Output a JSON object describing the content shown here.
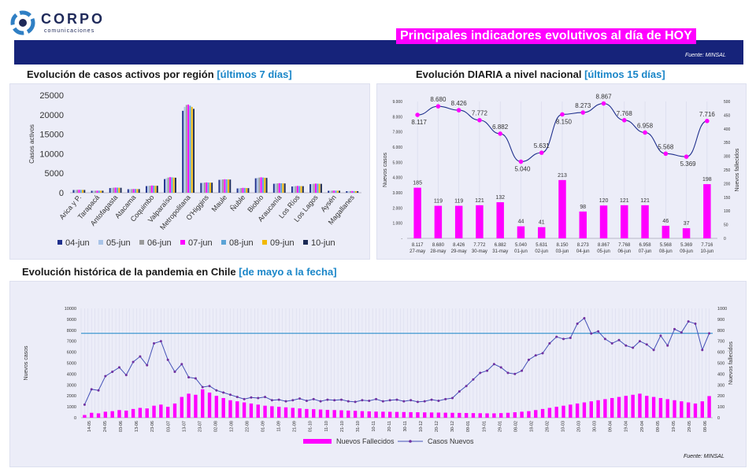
{
  "logo": {
    "name": "CORPO",
    "sub": "comunicaciones"
  },
  "header": {
    "title": "Principales indicadores evolutivos al día de HOY",
    "source": "Fuente: MINSAL"
  },
  "sections": {
    "regional": {
      "title": "Evolución de casos activos por región",
      "accent": "[últimos 7 días]"
    },
    "daily": {
      "title": "Evolución DIARIA  a nivel nacional",
      "accent": "[últimos 15 días]"
    },
    "history": {
      "title": "Evolución histórica de la pandemia en Chile",
      "accent": "[de mayo a la fecha]"
    }
  },
  "footer": {
    "source": "Fuente: MINSAL"
  },
  "colors": {
    "navy": "#16237a",
    "magenta": "#ff00ff",
    "purple": "#7030a0",
    "accent": "#1a86c8",
    "line": "#4451b8"
  },
  "chart_data": [
    {
      "type": "bar",
      "ylabel": "Casos activos",
      "ylim": [
        0,
        25000
      ],
      "yticks": [
        "0",
        "5000",
        "10000",
        "15000",
        "20000",
        "25000"
      ],
      "categories": [
        "Arica y P.",
        "Tarapacá",
        "Antofagasta",
        "Atacama",
        "Coquimbo",
        "Valparaíso",
        "Metropolitana",
        "O'Higgins",
        "Maule",
        "Ñuble",
        "Biobío",
        "Araucanía",
        "Los Ríos",
        "Los Lagos",
        "Aysén",
        "Magallanes"
      ],
      "series": [
        {
          "name": "04-jun",
          "color": "#1f2f8c",
          "values": [
            700,
            500,
            1200,
            900,
            1700,
            3500,
            21000,
            2500,
            3300,
            1100,
            3700,
            2300,
            1600,
            2200,
            500,
            400
          ]
        },
        {
          "name": "05-jun",
          "color": "#a9c4e8",
          "values": [
            720,
            510,
            1250,
            920,
            1750,
            3700,
            22000,
            2550,
            3350,
            1150,
            3800,
            2350,
            1650,
            2250,
            520,
            420
          ]
        },
        {
          "name": "06-jun",
          "color": "#9a9a9a",
          "values": [
            740,
            520,
            1300,
            940,
            1800,
            3900,
            22500,
            2600,
            3400,
            1200,
            3900,
            2400,
            1700,
            2300,
            540,
            430
          ]
        },
        {
          "name": "07-jun",
          "color": "#ff00ff",
          "values": [
            760,
            530,
            1320,
            950,
            1850,
            4000,
            22600,
            2650,
            3450,
            1250,
            3950,
            2450,
            1750,
            2350,
            550,
            440
          ]
        },
        {
          "name": "08-jun",
          "color": "#5ba3d6",
          "values": [
            750,
            540,
            1310,
            960,
            1830,
            3950,
            22300,
            2620,
            3420,
            1230,
            3900,
            2420,
            1720,
            2320,
            540,
            430
          ]
        },
        {
          "name": "09-jun",
          "color": "#f2b800",
          "values": [
            730,
            530,
            1290,
            940,
            1800,
            3900,
            22000,
            2600,
            3400,
            1200,
            3850,
            2400,
            1700,
            2300,
            530,
            420
          ]
        },
        {
          "name": "10-jun",
          "color": "#1b2a55",
          "values": [
            720,
            520,
            1270,
            930,
            1780,
            3850,
            21500,
            2580,
            3380,
            1180,
            3800,
            2380,
            1680,
            2280,
            520,
            410
          ]
        }
      ]
    },
    {
      "type": "bar+line",
      "ylabel_left": "Nuevos casos",
      "ylabel_right": "Nuevos fallecidos",
      "yticks_left": [
        "-",
        "1.000",
        "2.000",
        "3.000",
        "4.000",
        "5.000",
        "6.000",
        "7.000",
        "8.000",
        "9.000"
      ],
      "yticks_right": [
        "0",
        "50",
        "100",
        "150",
        "200",
        "250",
        "300",
        "350",
        "400",
        "450",
        "500"
      ],
      "categories": [
        "27-may",
        "28-may",
        "29-may",
        "30-may",
        "31-may",
        "01-jun",
        "02-jun",
        "03-jun",
        "04-jun",
        "05-jun",
        "06-jun",
        "07-jun",
        "08-jun",
        "09-jun",
        "10-jun"
      ],
      "cases": [
        8117,
        8680,
        8426,
        7772,
        6882,
        5040,
        5631,
        8150,
        8273,
        8867,
        7768,
        6958,
        5568,
        5369,
        7716
      ],
      "case_labels": [
        "8.117",
        "8.680",
        "8.426",
        "7.772",
        "6.882",
        "5.040",
        "5.631",
        "8.150",
        "8.273",
        "8.867",
        "7.768",
        "6.958",
        "5.568",
        "5.369",
        "7.716"
      ],
      "deaths": [
        185,
        119,
        119,
        121,
        132,
        44,
        41,
        213,
        98,
        120,
        121,
        121,
        46,
        37,
        198
      ],
      "death_labels": [
        "185",
        "119",
        "119",
        "121",
        "132",
        "44",
        "41",
        "213",
        "98",
        "120",
        "121",
        "121",
        "46",
        "37",
        "198"
      ]
    },
    {
      "type": "bar+line",
      "ylabel_left": "Nuevos casos",
      "ylabel_right": "Nuevos fallecidos",
      "yticks_left": [
        "0",
        "1000",
        "2000",
        "3000",
        "4000",
        "5000",
        "6000",
        "7000",
        "8000",
        "9000",
        "10000"
      ],
      "yticks_right": [
        "0",
        "100",
        "200",
        "300",
        "400",
        "500",
        "600",
        "700",
        "800",
        "900",
        "1000"
      ],
      "reference_value": 7716,
      "legend": [
        "Nuevos Fallecidos",
        "Casos Nuevos"
      ],
      "x_tick_labels": [
        "14-05",
        "24-05",
        "03-06",
        "13-06",
        "23-06",
        "03-07",
        "13-07",
        "23-07",
        "02-08",
        "12-08",
        "22-08",
        "01-09",
        "11-09",
        "21-09",
        "01-10",
        "11-10",
        "21-10",
        "31-10",
        "10-11",
        "20-11",
        "30-11",
        "10-12",
        "20-12",
        "30-12",
        "09-01",
        "19-01",
        "29-01",
        "08-02",
        "18-02",
        "28-02",
        "10-03",
        "20-03",
        "30-03",
        "09-04",
        "19-04",
        "29-04",
        "09-05",
        "19-05",
        "29-05",
        "08-06"
      ],
      "cases": [
        1200,
        2600,
        2500,
        3800,
        4200,
        4600,
        3900,
        5100,
        5600,
        4800,
        6800,
        7000,
        5300,
        4200,
        4900,
        3700,
        3600,
        2800,
        2900,
        2500,
        2300,
        2100,
        1900,
        1700,
        1850,
        1800,
        1900,
        1600,
        1650,
        1500,
        1600,
        1750,
        1550,
        1700,
        1500,
        1650,
        1600,
        1650,
        1500,
        1450,
        1600,
        1550,
        1700,
        1500,
        1600,
        1650,
        1500,
        1600,
        1450,
        1500,
        1650,
        1550,
        1700,
        1800,
        2400,
        2900,
        3500,
        4100,
        4300,
        4900,
        4600,
        4100,
        4000,
        4300,
        5300,
        5700,
        5900,
        6800,
        7400,
        7200,
        7300,
        8600,
        9100,
        7700,
        7900,
        7200,
        6800,
        7100,
        6600,
        6400,
        7000,
        6700,
        6200,
        7500,
        6600,
        8100,
        7800,
        8800,
        8600,
        6200,
        7716
      ],
      "deaths": [
        25,
        45,
        40,
        55,
        60,
        70,
        65,
        80,
        90,
        85,
        110,
        120,
        100,
        130,
        190,
        220,
        210,
        260,
        230,
        200,
        180,
        160,
        150,
        140,
        130,
        120,
        110,
        105,
        100,
        95,
        90,
        85,
        80,
        78,
        75,
        72,
        70,
        68,
        65,
        63,
        60,
        58,
        56,
        55,
        54,
        53,
        52,
        51,
        50,
        49,
        48,
        47,
        46,
        45,
        44,
        43,
        42,
        41,
        40,
        40,
        42,
        45,
        50,
        55,
        60,
        70,
        80,
        90,
        100,
        110,
        120,
        130,
        140,
        150,
        160,
        170,
        180,
        190,
        200,
        210,
        220,
        200,
        190,
        180,
        170,
        160,
        150,
        140,
        130,
        150,
        198
      ]
    }
  ]
}
